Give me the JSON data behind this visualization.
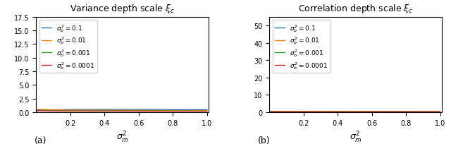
{
  "title_left": "Variance depth scale $\\xi_c$",
  "title_right": "Correlation depth scale $\\xi_c$",
  "xlabel": "$\\sigma_m^2$",
  "label_a": "(a)",
  "label_b": "(b)",
  "sigma_b_values": [
    0.1,
    0.01,
    0.001,
    0.0001
  ],
  "legend_labels": [
    "$\\sigma_b^2 = 0.1$",
    "$\\sigma_b^2 = 0.01$",
    "$\\sigma_b^2 = 0.001$",
    "$\\sigma_b^2 = 0.0001$"
  ],
  "colors": [
    "#1f77b4",
    "#ff7f0e",
    "#2ca02c",
    "#d62728"
  ],
  "xlim": [
    0.0,
    1.01
  ],
  "ylim_left": [
    0.0,
    17.5
  ],
  "ylim_right": [
    0.0,
    55.0
  ],
  "yticks_left": [
    0.0,
    2.5,
    5.0,
    7.5,
    10.0,
    12.5,
    15.0,
    17.5
  ],
  "yticks_right": [
    0,
    10,
    20,
    30,
    40,
    50
  ]
}
